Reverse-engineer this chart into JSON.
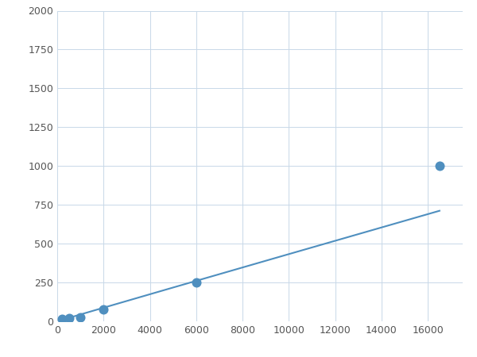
{
  "x_data": [
    200,
    500,
    1000,
    2000,
    6000,
    16500
  ],
  "y_data": [
    15,
    20,
    25,
    75,
    250,
    1000
  ],
  "line_color": "#4f8fbf",
  "marker_color": "#4f8fbf",
  "marker_size": 5,
  "line_width": 1.5,
  "xlim": [
    0,
    17500
  ],
  "ylim": [
    0,
    2000
  ],
  "xticks": [
    0,
    2000,
    4000,
    6000,
    8000,
    10000,
    12000,
    14000,
    16000
  ],
  "yticks": [
    0,
    250,
    500,
    750,
    1000,
    1250,
    1500,
    1750,
    2000
  ],
  "grid_color": "#c8d8e8",
  "bg_color": "#ffffff",
  "fig_bg_color": "#ffffff",
  "tick_label_size": 9,
  "tick_label_color": "#555555"
}
